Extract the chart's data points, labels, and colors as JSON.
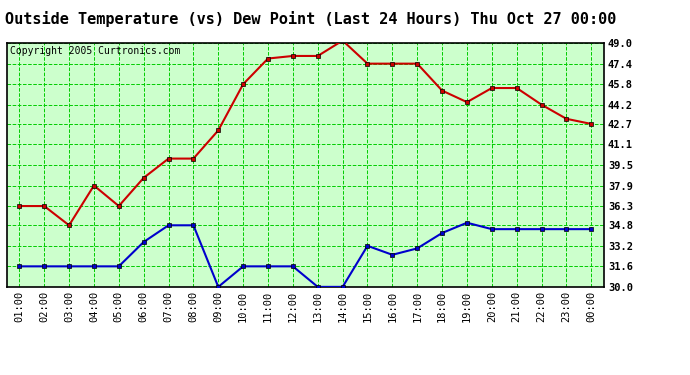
{
  "title": "Outside Temperature (vs) Dew Point (Last 24 Hours) Thu Oct 27 00:00",
  "copyright": "Copyright 2005 Curtronics.com",
  "x_labels": [
    "01:00",
    "02:00",
    "03:00",
    "04:00",
    "05:00",
    "06:00",
    "07:00",
    "08:00",
    "09:00",
    "10:00",
    "11:00",
    "12:00",
    "13:00",
    "14:00",
    "15:00",
    "16:00",
    "17:00",
    "18:00",
    "19:00",
    "20:00",
    "21:00",
    "22:00",
    "23:00",
    "00:00"
  ],
  "temp_values": [
    36.3,
    36.3,
    34.8,
    37.9,
    36.3,
    38.5,
    40.0,
    40.0,
    42.2,
    45.8,
    47.8,
    48.0,
    48.0,
    49.2,
    47.4,
    47.4,
    47.4,
    45.3,
    44.4,
    45.5,
    45.5,
    44.2,
    43.1,
    42.7
  ],
  "dew_values": [
    31.6,
    31.6,
    31.6,
    31.6,
    31.6,
    33.5,
    34.8,
    34.8,
    30.0,
    31.6,
    31.6,
    31.6,
    30.0,
    30.0,
    33.2,
    32.5,
    33.0,
    34.2,
    35.0,
    34.5,
    34.5,
    34.5,
    34.5,
    34.5
  ],
  "temp_color": "#cc0000",
  "dew_color": "#0000cc",
  "plot_bg": "#ccffcc",
  "outer_bg": "#ffffff",
  "grid_color": "#00cc00",
  "y_ticks": [
    30.0,
    31.6,
    33.2,
    34.8,
    36.3,
    37.9,
    39.5,
    41.1,
    42.7,
    44.2,
    45.8,
    47.4,
    49.0
  ],
  "y_min": 30.0,
  "y_max": 49.0,
  "title_fontsize": 11,
  "copyright_fontsize": 7,
  "tick_fontsize": 7.5,
  "marker": "s",
  "marker_size": 3,
  "line_width": 1.5
}
